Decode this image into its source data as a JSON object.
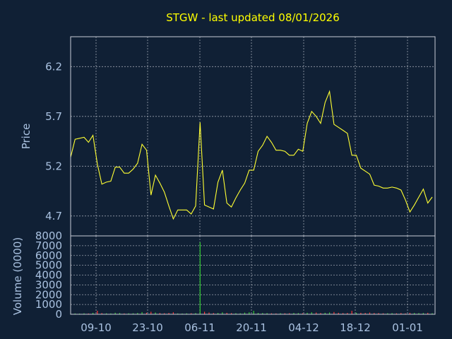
{
  "chart_data": [
    {
      "type": "line",
      "title": "STGW - last updated 08/01/2026",
      "ylabel": "Price",
      "ylim": [
        4.5,
        6.5
      ],
      "yticks": [
        "6.2",
        "5.7",
        "5.2",
        "4.7"
      ],
      "xticks": [
        "09-10",
        "23-10",
        "06-11",
        "20-11",
        "04-12",
        "18-12",
        "01-01"
      ],
      "grid": true,
      "line_color": "#ffff33",
      "series": [
        {
          "values": [
            5.29,
            5.47,
            5.48,
            5.49,
            5.44,
            5.51,
            5.22,
            5.02,
            5.04,
            5.05,
            5.19,
            5.19,
            5.13,
            5.13,
            5.17,
            5.23,
            5.42,
            5.36,
            4.91,
            5.11,
            5.03,
            4.94,
            4.8,
            4.67,
            4.76,
            4.76,
            4.76,
            4.72,
            4.8,
            5.64,
            4.81,
            4.79,
            4.77,
            5.04,
            5.16,
            4.83,
            4.79,
            4.88,
            4.96,
            5.03,
            5.16,
            5.16,
            5.35,
            5.41,
            5.5,
            5.44,
            5.36,
            5.36,
            5.35,
            5.31,
            5.31,
            5.37,
            5.35,
            5.63,
            5.75,
            5.7,
            5.63,
            5.84,
            5.95,
            5.62,
            5.59,
            5.56,
            5.53,
            5.31,
            5.31,
            5.18,
            5.15,
            5.12,
            5.01,
            5.0,
            4.98,
            4.98,
            4.99,
            4.98,
            4.96,
            4.86,
            4.74,
            4.81,
            4.89,
            4.97,
            4.83,
            4.89
          ]
        }
      ]
    },
    {
      "type": "bar",
      "ylabel": "Volume (0000)",
      "ylim": [
        0,
        8000
      ],
      "yticks": [
        "8000",
        "7000",
        "6000",
        "5000",
        "4000",
        "3000",
        "2000",
        "1000",
        "0"
      ],
      "xticks": [
        "09-10",
        "23-10",
        "06-11",
        "20-11",
        "04-12",
        "18-12",
        "01-01"
      ],
      "grid": true,
      "series": [
        {
          "values": [
            60,
            90,
            70,
            100,
            80,
            150,
            360,
            120,
            100,
            90,
            160,
            140,
            90,
            100,
            100,
            140,
            220,
            150,
            260,
            180,
            130,
            110,
            140,
            200,
            90,
            80,
            100,
            110,
            120,
            7350,
            260,
            180,
            130,
            140,
            200,
            150,
            120,
            110,
            100,
            170,
            210,
            350,
            140,
            130,
            120,
            100,
            90,
            110,
            100,
            110,
            140,
            120,
            110,
            160,
            210,
            180,
            130,
            150,
            190,
            230,
            150,
            120,
            140,
            350,
            160,
            150,
            140,
            180,
            130,
            120,
            100,
            110,
            120,
            100,
            130,
            90,
            150,
            140,
            120,
            130,
            150,
            110
          ],
          "colors": [
            "#ff3333",
            "#33cc33"
          ]
        }
      ]
    }
  ]
}
